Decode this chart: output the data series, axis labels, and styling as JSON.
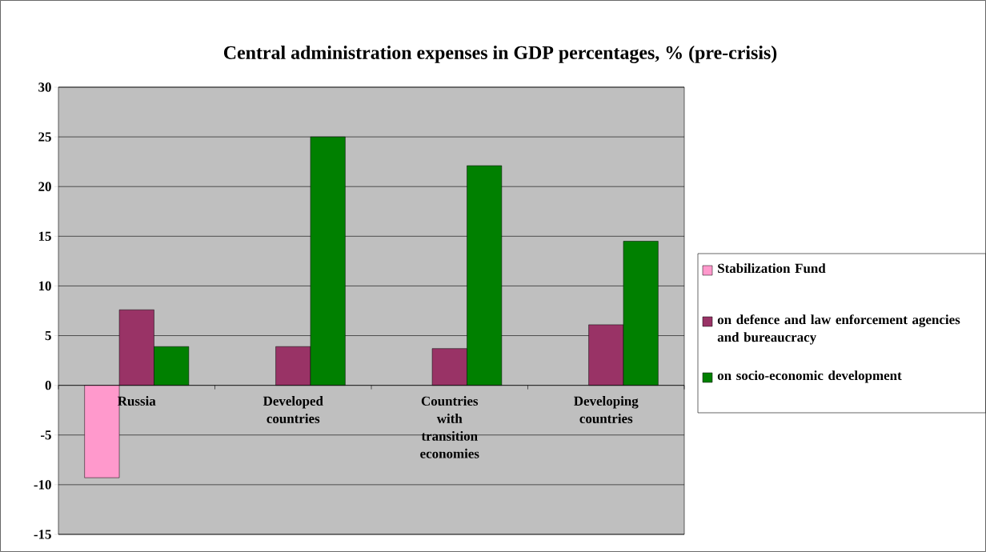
{
  "chart_data": {
    "type": "bar",
    "title": "Central administration expenses in GDP percentages, % (pre-crisis)",
    "categories": [
      "Russia",
      "Developed countries",
      "Countries with transition economies",
      "Developing countries"
    ],
    "series": [
      {
        "name": "Stabilization Fund",
        "color": "#ff99cc",
        "values": [
          -9.3,
          null,
          null,
          null
        ]
      },
      {
        "name": "on defence and law enforcement agencies and bureaucracy",
        "color": "#993366",
        "values": [
          7.6,
          3.9,
          3.7,
          6.1
        ]
      },
      {
        "name": "on socio-economic development",
        "color": "#008000",
        "values": [
          3.9,
          25,
          22.1,
          14.5
        ]
      }
    ],
    "ylim": [
      -15,
      30
    ],
    "yticks": [
      -15,
      -10,
      -5,
      0,
      5,
      10,
      15,
      20,
      25,
      30
    ],
    "grid": "y",
    "legend": "right"
  }
}
